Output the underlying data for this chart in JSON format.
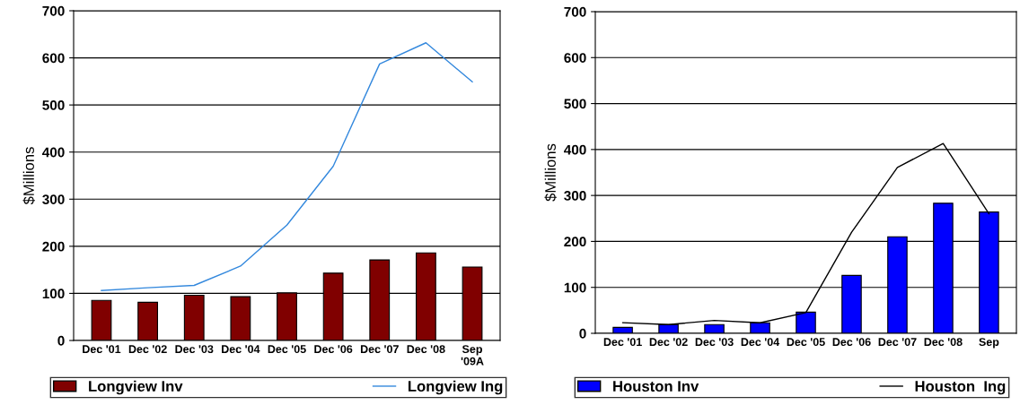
{
  "chart_data": [
    {
      "type": "bar",
      "categories": [
        "Dec '01",
        "Dec '02",
        "Dec '03",
        "Dec '04",
        "Dec '05",
        "Dec '06",
        "Dec '07",
        "Dec '08",
        "Sep\n'09A"
      ],
      "ylabel": "$Millions",
      "ylim": [
        0,
        700
      ],
      "yticks": [
        0,
        100,
        200,
        300,
        400,
        500,
        600,
        700
      ],
      "grid": "y",
      "legend": "bottom",
      "series": [
        {
          "name": "Longview Inv",
          "color": "#800000",
          "values": [
            85,
            81,
            96,
            93,
            101,
            143,
            171,
            186,
            156
          ]
        },
        {
          "name": "Longview Ing",
          "type": "line",
          "color": "#3388dd",
          "values": [
            106,
            112,
            117,
            158,
            245,
            370,
            587,
            632,
            549
          ]
        }
      ]
    },
    {
      "type": "bar",
      "categories": [
        "Dec '01",
        "Dec '02",
        "Dec '03",
        "Dec '04",
        "Dec '05",
        "Dec '06",
        "Dec '07",
        "Dec '08",
        "Sep"
      ],
      "ylabel": "$Millions",
      "ylim": [
        0,
        700
      ],
      "yticks": [
        0,
        100,
        200,
        300,
        400,
        500,
        600,
        700
      ],
      "grid": "y",
      "legend": "bottom",
      "series": [
        {
          "name": "Houston Inv",
          "color": "#0000ff",
          "values": [
            13,
            19,
            19,
            23,
            46,
            126,
            210,
            283,
            264
          ]
        },
        {
          "name": "Houston  Ing",
          "type": "line",
          "color": "#000000",
          "values": [
            23,
            19,
            28,
            23,
            45,
            220,
            361,
            413,
            260
          ]
        }
      ]
    }
  ]
}
